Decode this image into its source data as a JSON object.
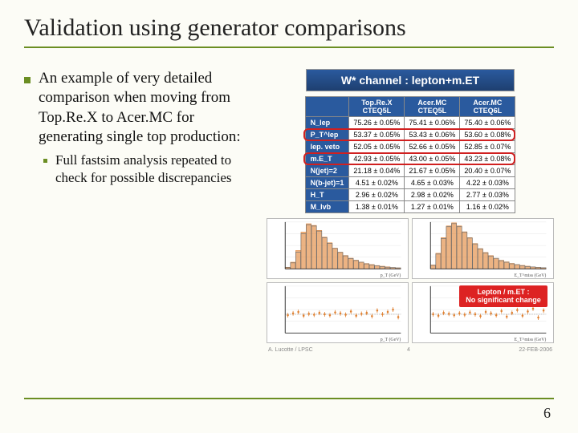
{
  "title": "Validation using generator comparisons",
  "bullet": {
    "main": "An example of very detailed comparison when moving from Top.Re.X to Acer.MC for generating  single top production:",
    "sub": "Full fastsim analysis repeated to check for possible discrepancies"
  },
  "banner": "W* channel : lepton+m.ET",
  "table": {
    "col_headers": [
      "Top.Re.X\nCTEQ5L",
      "Acer.MC\nCTEQ5L",
      "Acer.MC\nCTEQ6L"
    ],
    "rows": [
      {
        "label": "N_lep",
        "cells": [
          "75.26 ± 0.05%",
          "75.41 ± 0.06%",
          "75.40 ± 0.06%"
        ]
      },
      {
        "label": "P_T^lep",
        "cells": [
          "53.37 ± 0.05%",
          "53.43 ± 0.06%",
          "53.60 ± 0.08%"
        ],
        "highlight": true
      },
      {
        "label": "lep. veto",
        "cells": [
          "52.05 ± 0.05%",
          "52.66 ± 0.05%",
          "52.85 ± 0.07%"
        ]
      },
      {
        "label": "m.E_T",
        "cells": [
          "42.93 ± 0.05%",
          "43.00 ± 0.05%",
          "43.23 ± 0.08%"
        ],
        "highlight": true
      },
      {
        "label": "N(jet)=2",
        "cells": [
          "21.18 ± 0.04%",
          "21.67 ± 0.05%",
          "20.40 ± 0.07%"
        ]
      },
      {
        "label": "N(b-jet)=1",
        "cells": [
          "4.51 ± 0.02%",
          "4.65 ± 0.03%",
          "4.22 ± 0.03%"
        ]
      },
      {
        "label": "H_T",
        "cells": [
          "2.96 ± 0.02%",
          "2.98 ± 0.02%",
          "2.77 ± 0.03%"
        ]
      },
      {
        "label": "M_lvb",
        "cells": [
          "1.38 ± 0.01%",
          "1.27 ± 0.01%",
          "1.16 ± 0.02%"
        ]
      }
    ],
    "highlight_color": "#d02020"
  },
  "charts": {
    "series_colors": {
      "ref": "#e08030",
      "alt": "#707070"
    },
    "grid_color": "#e5e5e5",
    "axis_color": "#333333",
    "hist_tl": {
      "xlim": [
        0,
        200
      ],
      "ylim": [
        0,
        0.14
      ],
      "bins": 22,
      "ref": [
        0.005,
        0.02,
        0.055,
        0.11,
        0.135,
        0.13,
        0.115,
        0.095,
        0.078,
        0.062,
        0.05,
        0.04,
        0.032,
        0.026,
        0.02,
        0.016,
        0.013,
        0.01,
        0.008,
        0.006,
        0.004,
        0.003
      ],
      "alt": [
        0.004,
        0.018,
        0.05,
        0.105,
        0.132,
        0.128,
        0.113,
        0.093,
        0.076,
        0.061,
        0.049,
        0.039,
        0.031,
        0.025,
        0.02,
        0.015,
        0.012,
        0.009,
        0.007,
        0.005,
        0.004,
        0.003
      ],
      "xlabel": "p_T (GeV)"
    },
    "hist_tr": {
      "xlim": [
        0,
        200
      ],
      "ylim": [
        0,
        0.12
      ],
      "bins": 22,
      "ref": [
        0.01,
        0.04,
        0.08,
        0.11,
        0.118,
        0.11,
        0.095,
        0.08,
        0.065,
        0.052,
        0.042,
        0.034,
        0.027,
        0.022,
        0.018,
        0.014,
        0.011,
        0.009,
        0.007,
        0.005,
        0.004,
        0.003
      ],
      "alt": [
        0.009,
        0.038,
        0.078,
        0.108,
        0.116,
        0.108,
        0.094,
        0.079,
        0.064,
        0.051,
        0.041,
        0.033,
        0.027,
        0.021,
        0.017,
        0.013,
        0.011,
        0.008,
        0.006,
        0.005,
        0.004,
        0.003
      ],
      "xlabel": "E_T^miss (GeV)"
    },
    "ratio_bl": {
      "xlim": [
        0,
        200
      ],
      "ylim": [
        0.6,
        1.6
      ],
      "points": [
        0.98,
        1.02,
        1.05,
        0.97,
        1.01,
        0.99,
        1.03,
        1.0,
        0.98,
        1.04,
        1.02,
        0.99,
        1.06,
        0.97,
        1.01,
        1.03,
        0.96,
        1.08,
        1.0,
        1.05,
        1.1,
        0.94
      ],
      "xlabel": "p_T (GeV)"
    },
    "ratio_br": {
      "xlim": [
        0,
        200
      ],
      "ylim": [
        0.6,
        1.6
      ],
      "points": [
        1.0,
        0.97,
        1.03,
        1.01,
        0.98,
        1.02,
        0.99,
        1.04,
        1.0,
        0.96,
        1.05,
        1.02,
        0.98,
        1.07,
        0.95,
        1.03,
        1.09,
        0.97,
        1.06,
        1.12,
        0.93,
        1.08
      ],
      "xlabel": "E_T^miss (GeV)"
    }
  },
  "callout": {
    "line1": "Lepton / m.ET :",
    "line2": "No significant change",
    "bg": "#d02020"
  },
  "credit_left": "A. Lucotte / LPSC",
  "credit_right": "22-FEB-2006",
  "credit_mid": "4",
  "page_number": "6"
}
